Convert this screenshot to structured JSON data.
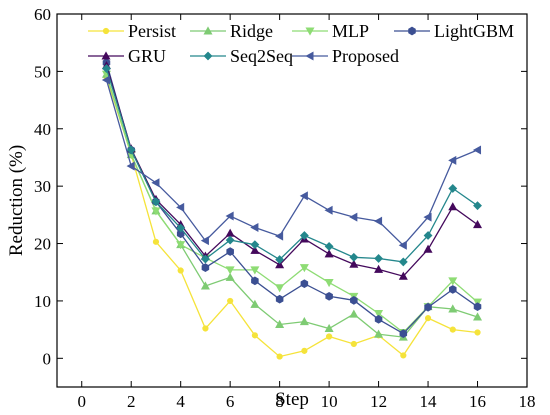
{
  "chart_data": {
    "type": "line",
    "title": "",
    "xlabel": "Step",
    "ylabel": "Reduction (%)",
    "xlim": [
      -1,
      18
    ],
    "ylim": [
      -5,
      60
    ],
    "xticks": [
      0,
      2,
      4,
      6,
      8,
      10,
      12,
      14,
      16,
      18
    ],
    "yticks": [
      0,
      10,
      20,
      30,
      40,
      50,
      60
    ],
    "grid": false,
    "legend_position": "top",
    "x": [
      1,
      2,
      3,
      4,
      5,
      6,
      7,
      8,
      9,
      10,
      11,
      12,
      13,
      14,
      15,
      16
    ],
    "series": [
      {
        "name": "Persist",
        "color": "#f5e33a",
        "marker": "circle",
        "values": [
          49,
          35.5,
          20.3,
          15.3,
          5.2,
          10,
          4,
          0.3,
          1.3,
          3.8,
          2.5,
          4,
          0.5,
          7,
          5,
          4.5
        ]
      },
      {
        "name": "Ridge",
        "color": "#7ecb73",
        "marker": "triangle-up",
        "values": [
          49.5,
          35.5,
          25.7,
          19.8,
          12.6,
          14.1,
          9.4,
          5.9,
          6.4,
          5.2,
          7.7,
          4.2,
          3.7,
          9,
          8.6,
          7.2
        ]
      },
      {
        "name": "MLP",
        "color": "#8edc74",
        "marker": "triangle-down",
        "values": [
          49.5,
          35.5,
          25.7,
          19.8,
          17.5,
          15.4,
          15.4,
          12.3,
          15.8,
          13.2,
          10.8,
          7.8,
          4.5,
          9,
          13.5,
          9.8
        ]
      },
      {
        "name": "LightGBM",
        "color": "#3b4f92",
        "marker": "hexagon",
        "values": [
          51.5,
          36.3,
          27.3,
          21.7,
          15.8,
          18.6,
          13.5,
          10.3,
          13,
          10.8,
          10.1,
          6.8,
          4.3,
          8.9,
          12,
          9
        ]
      },
      {
        "name": "GRU",
        "color": "#44095c",
        "marker": "triangle-up",
        "values": [
          51,
          36.5,
          27.7,
          23.3,
          17.8,
          21.8,
          18.8,
          16.3,
          20.8,
          18.2,
          16.4,
          15.5,
          14.3,
          19,
          26.4,
          23.3
        ]
      },
      {
        "name": "Seq2Seq",
        "color": "#24878c",
        "marker": "diamond",
        "values": [
          50.5,
          36.3,
          27.3,
          22.7,
          17.3,
          20.6,
          19.8,
          17.2,
          21.4,
          19.5,
          17.6,
          17.4,
          16.8,
          21.4,
          29.6,
          26.6
        ]
      },
      {
        "name": "Proposed",
        "color": "#465a9e",
        "marker": "triangle-left",
        "values": [
          48.5,
          33.5,
          30.6,
          26.3,
          20.5,
          24.8,
          22.8,
          21.3,
          28.3,
          25.8,
          24.6,
          23.9,
          19.7,
          24.6,
          34.5,
          36.3
        ]
      }
    ]
  }
}
